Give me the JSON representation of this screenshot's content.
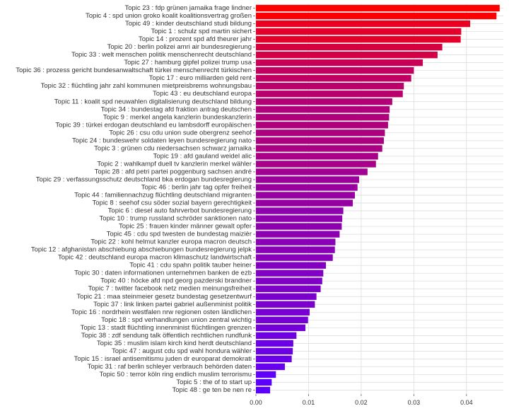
{
  "chart_data": {
    "type": "bar",
    "orientation": "horizontal",
    "title": "",
    "xlabel": "",
    "ylabel": "",
    "xlim": [
      0,
      0.047
    ],
    "x_ticks": [
      0.0,
      0.01,
      0.02,
      0.03,
      0.04
    ],
    "x_tick_labels": [
      "0.00",
      "0.01",
      "0.02",
      "0.03",
      "0.04"
    ],
    "grid": true,
    "legend": "none",
    "color_scale": {
      "high": "#ff0000",
      "low": "#5b00ff"
    },
    "categories": [
      "Topic 23 : fdp grünen jamaika frage lindner",
      "Topic 4 : spd union groko koalit koalitionsvertrag großen",
      "Topic 49 : kinder deutschland studi bildung",
      "Topic 1 : schulz spd martin sichert",
      "Topic 14 : prozent spd afd theurer jahr",
      "Topic 20 : berlin polizei amri air bundesregierung",
      "Topic 33 : welt menschen politik menschenrecht deutschland",
      "Topic 27 : hamburg gipfel polizei trump usa",
      "Topic 36 : prozess gericht bundesanwaltschaft türkei menschenrecht türkischen",
      "Topic 17 : euro milliarden geld rent",
      "Topic 32 : flüchtling jahr zahl kommunen mietpreisbrems wohnungsbau",
      "Topic 43 : eu deutschland europa",
      "Topic 11 : koalit spd neuwahlen digitalisierung deutschland bildung",
      "Topic 34 : bundestag afd fraktion antrag deutschen",
      "Topic 9 : merkel angela kanzlerin bundeskanzlerin",
      "Topic 39 : türkei erdogan deutschland eu lambsdorff europäischen",
      "Topic 26 : csu cdu union sude obergrenz seehof",
      "Topic 24 : bundeswehr soldaten leyen bundesregierung nato",
      "Topic 3 : grünen cdu niedersachsen schwarz jamaika",
      "Topic 19 : afd gauland weidel alic",
      "Topic 2 : wahlkampf duell tv kanzlerin merkel wähler",
      "Topic 28 : afd petri partei poggenburg sachsen andré",
      "Topic 29 : verfassungsschutz deutschland bka erdogan bundesregierung",
      "Topic 46 : berlin jahr tag opfer freiheit",
      "Topic 44 : familiennachzug flüchtling deutschland migranten",
      "Topic 8 : seehof csu söder sozial bayern gerechtigkeit",
      "Topic 6 : diesel auto fahrverbot bundesregierung",
      "Topic 10 : trump russland schröder sanktionen nato",
      "Topic 25 : frauen kinder männer gewalt opfer",
      "Topic 45 : cdu spd twesten de bundestag maizièr",
      "Topic 22 : kohl helmut kanzler europa macron deutsch",
      "Topic 12 : afghanistan abschiebung abschiebungen bundesregierung jelpk",
      "Topic 42 : deutschland europa macron klimaschutz landwirtschaft",
      "Topic 41 : cdu spahn politik tauber heiner",
      "Topic 30 : daten informationen unternehmen banken de ezb",
      "Topic 40 : höcke afd npd georg pazderski brandner",
      "Topic 7 : twitter facebook netz medien meinungsfreiheit",
      "Topic 21 : maa steinmeier gesetz bundestag gesetzentwurf",
      "Topic 37 : link linken partei gabriel außenminist politik",
      "Topic 16 : nordrhein westfalen nrw regionen osten ländlichen",
      "Topic 18 : spd verhandlungen union zentral wichtig",
      "Topic 13 : stadt flüchtling innenminist flüchtlingen grenzen",
      "Topic 38 : zdf sendung talk öffentlich rechtlichen rundfunk",
      "Topic 35 : muslim islam kirch kind herdt deutschland",
      "Topic 47 : august cdu spd wahl hondura wähler",
      "Topic 15 : israel antisemitismu juden dr europarat demokrati",
      "Topic 31 : raf berlin schleyer verbrauch behörden daten",
      "Topic 50 : terror köln ring endlich muslim terrorismu",
      "Topic 5 : the of to start up",
      "Topic 48 : ge ten be nen re"
    ],
    "values": [
      0.0463,
      0.0457,
      0.0407,
      0.039,
      0.0389,
      0.0354,
      0.0345,
      0.0317,
      0.03,
      0.0295,
      0.0281,
      0.0279,
      0.0259,
      0.0254,
      0.0253,
      0.0251,
      0.0245,
      0.0243,
      0.024,
      0.0232,
      0.0228,
      0.0212,
      0.0196,
      0.0193,
      0.0188,
      0.0184,
      0.0166,
      0.0164,
      0.0163,
      0.0159,
      0.0151,
      0.015,
      0.0146,
      0.0133,
      0.0128,
      0.0126,
      0.0123,
      0.0115,
      0.0112,
      0.0102,
      0.0099,
      0.0094,
      0.0077,
      0.0071,
      0.007,
      0.0068,
      0.0055,
      0.0038,
      0.003,
      0.0027
    ]
  }
}
